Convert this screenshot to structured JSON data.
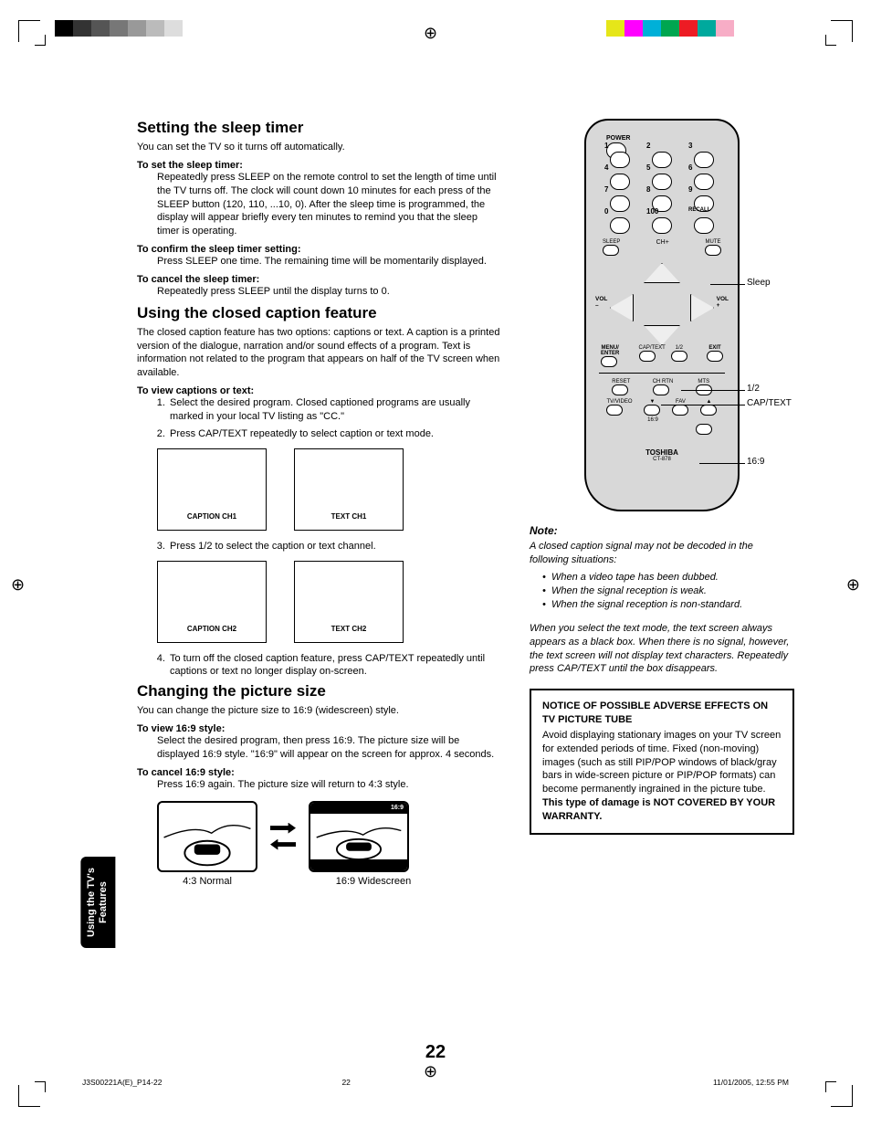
{
  "print": {
    "gray_bars": [
      "#000000",
      "#333333",
      "#555555",
      "#777777",
      "#999999",
      "#bbbbbb",
      "#dddddd",
      "#ffffff"
    ],
    "color_bars": [
      "#e6e619",
      "#ff00ff",
      "#00b0d8",
      "#00a650",
      "#ed1c24",
      "#00a99d",
      "#f7adc6",
      "#ffffff"
    ],
    "reg_symbol": "⊕"
  },
  "tab": {
    "line1": "Using the TV's",
    "line2": "Features"
  },
  "section1": {
    "heading": "Setting the sleep timer",
    "intro": "You can set the TV so it turns off automatically.",
    "sub1": "To set the sleep timer:",
    "body1": "Repeatedly press SLEEP on the remote control to set the length of time until the TV turns off. The clock will count down 10 minutes for each press of the SLEEP button (120, 110, ...10, 0). After the sleep time is programmed, the display will appear briefly every ten minutes to remind you that the sleep timer is operating.",
    "sub2": "To confirm the sleep timer setting:",
    "body2": "Press SLEEP one time. The remaining time will be momentarily displayed.",
    "sub3": "To cancel the sleep timer:",
    "body3": "Repeatedly press SLEEP until the display turns to 0."
  },
  "section2": {
    "heading": "Using the closed caption feature",
    "intro": "The closed caption feature has two options: captions or text. A caption is a printed version of the dialogue, narration and/or sound effects of a program. Text is information not related to the program that appears on half of the TV screen when available.",
    "sub1": "To view captions or text:",
    "li1": "Select the desired program. Closed captioned programs are usually marked in your local TV listing as \"CC.\"",
    "li2": "Press CAP/TEXT repeatedly to select caption or text mode.",
    "screen1a": "CAPTION CH1",
    "screen1b": "TEXT CH1",
    "li3": "Press 1/2 to select the caption or text channel.",
    "screen2a": "CAPTION CH2",
    "screen2b": "TEXT CH2",
    "li4": "To turn off the closed caption feature, press CAP/TEXT repeatedly until captions or text no longer display on-screen."
  },
  "section3": {
    "heading": "Changing the picture size",
    "intro": "You can change the picture size to 16:9 (widescreen) style.",
    "sub1": "To view 16:9 style:",
    "body1": "Select the desired program, then press 16:9. The picture size will be displayed 16:9 style. \"16:9\" will appear on the screen for approx. 4 seconds.",
    "sub2": "To cancel 16:9 style:",
    "body2": "Press 16:9 again. The picture size will return to 4:3 style.",
    "cap1": "4:3 Normal",
    "cap2": "16:9 Widescreen",
    "ratio_label": "16:9"
  },
  "remote": {
    "power": "POWER",
    "nums": [
      "1",
      "2",
      "3",
      "4",
      "5",
      "6",
      "7",
      "8",
      "9",
      "0",
      "100"
    ],
    "recall": "RECALL",
    "sleep": "SLEEP",
    "mute": "MUTE",
    "chplus": "CH+",
    "chminus": "CH–",
    "volminus": "VOL\n–",
    "volplus": "VOL\n+",
    "menu": "MENU/\nENTER",
    "exit": "EXIT",
    "captext": "CAP/TEXT",
    "half": "1/2",
    "reset": "RESET",
    "chrtn": "CH RTN",
    "mts": "MTS",
    "tvvideo": "TV/VIDEO",
    "favdown": "▼",
    "fav": "FAV",
    "favup": "▲",
    "ratio": "16:9",
    "brand": "TOSHIBA",
    "model": "CT-878",
    "callouts": {
      "sleep": "Sleep",
      "half": "1/2",
      "captext": "CAP/TEXT",
      "ratio": "16:9"
    }
  },
  "note": {
    "heading": "Note:",
    "intro": "A closed caption signal may not be decoded in the following situations:",
    "li1": "When a video tape has been dubbed.",
    "li2": "When the signal reception is weak.",
    "li3": "When the signal reception is non-standard.",
    "para2": "When you select the text mode, the text screen always appears as a black box. When there is no signal, however, the text screen will not display text characters. Repeatedly press CAP/TEXT until the box disappears."
  },
  "notice": {
    "heading": "NOTICE OF POSSIBLE ADVERSE EFFECTS ON TV PICTURE TUBE",
    "body": "Avoid displaying stationary images on your TV screen for extended periods of time. Fixed (non-moving) images (such as still PIP/POP windows of black/gray bars in wide-screen picture or PIP/POP formats) can become permanently ingrained in the picture tube. ",
    "bold": "This type of damage is NOT COVERED BY YOUR WARRANTY."
  },
  "page_number": "22",
  "footer": {
    "left": "J3S00221A(E)_P14-22",
    "mid": "22",
    "right": "11/01/2005, 12:55 PM"
  }
}
